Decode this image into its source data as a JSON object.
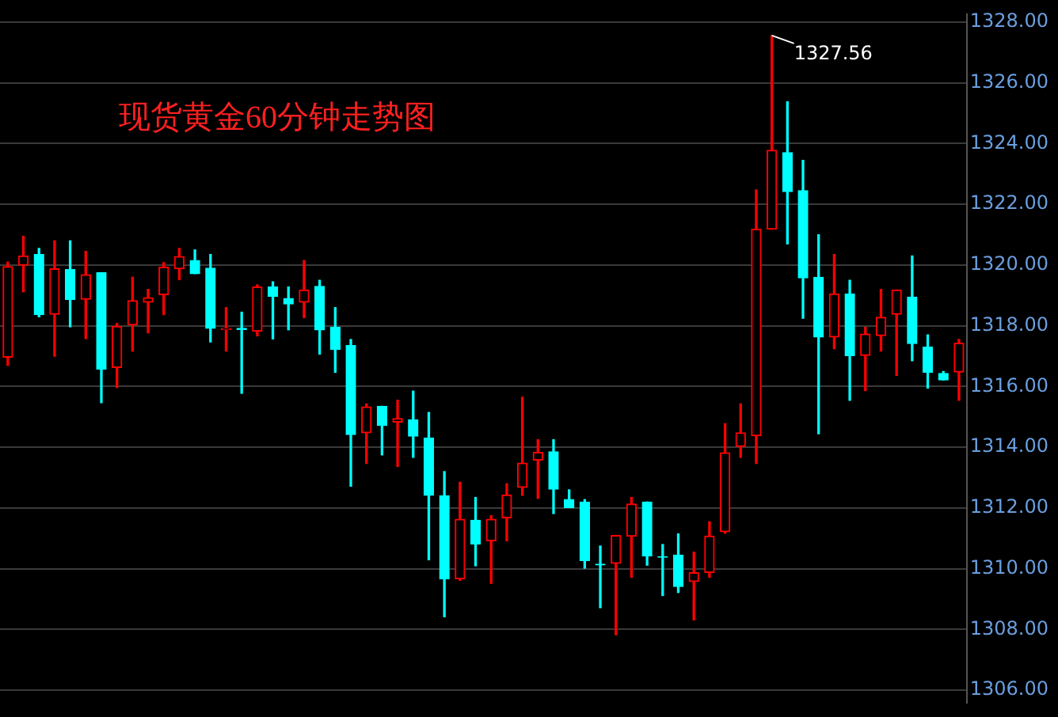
{
  "chart_data": {
    "type": "candlestick",
    "title": "现货黄金60分钟走势图",
    "categories": [
      null,
      null,
      null,
      null,
      null,
      null,
      null,
      null,
      null,
      null,
      null,
      null,
      null,
      null,
      null,
      null,
      null,
      null,
      null,
      null,
      null,
      null,
      null,
      null,
      null,
      null,
      null,
      null,
      null,
      null,
      null,
      null,
      null,
      null,
      null,
      null,
      null,
      null,
      null,
      null,
      null,
      null,
      null,
      null,
      null,
      null,
      null,
      null,
      null,
      null,
      null,
      null,
      null,
      null,
      null,
      null,
      null,
      null,
      null,
      null,
      null,
      null
    ],
    "ohlc": [
      [
        1316.97,
        1320.1,
        1316.7,
        1319.95
      ],
      [
        1320.0,
        1320.95,
        1319.12,
        1320.3
      ],
      [
        1320.35,
        1320.55,
        1318.3,
        1318.37
      ],
      [
        1318.38,
        1320.8,
        1317.0,
        1319.88
      ],
      [
        1319.85,
        1320.8,
        1317.97,
        1318.87
      ],
      [
        1318.88,
        1320.45,
        1317.58,
        1319.68
      ],
      [
        1319.75,
        1319.75,
        1315.47,
        1316.57
      ],
      [
        1316.63,
        1318.08,
        1315.97,
        1317.98
      ],
      [
        1318.03,
        1319.6,
        1317.17,
        1318.83
      ],
      [
        1318.78,
        1319.2,
        1317.77,
        1318.93
      ],
      [
        1319.03,
        1320.08,
        1318.37,
        1319.93
      ],
      [
        1319.88,
        1320.55,
        1319.52,
        1320.28
      ],
      [
        1320.15,
        1320.5,
        1319.72,
        1319.72
      ],
      [
        1319.9,
        1320.35,
        1317.47,
        1317.92
      ],
      [
        1317.88,
        1318.6,
        1317.17,
        1317.92
      ],
      [
        1317.92,
        1318.45,
        1315.78,
        1317.88
      ],
      [
        1317.83,
        1319.35,
        1317.67,
        1319.28
      ],
      [
        1319.28,
        1319.45,
        1317.57,
        1318.97
      ],
      [
        1318.9,
        1319.28,
        1317.87,
        1318.72
      ],
      [
        1318.78,
        1320.15,
        1318.27,
        1319.18
      ],
      [
        1319.3,
        1319.5,
        1317.07,
        1317.87
      ],
      [
        1317.95,
        1318.6,
        1316.47,
        1317.22
      ],
      [
        1317.35,
        1317.55,
        1312.72,
        1314.42
      ],
      [
        1314.48,
        1315.43,
        1313.47,
        1315.33
      ],
      [
        1315.35,
        1315.35,
        1313.75,
        1314.72
      ],
      [
        1314.83,
        1315.55,
        1313.37,
        1314.95
      ],
      [
        1314.9,
        1315.85,
        1313.67,
        1314.37
      ],
      [
        1314.3,
        1315.15,
        1310.3,
        1312.42
      ],
      [
        1312.4,
        1313.2,
        1308.42,
        1309.67
      ],
      [
        1309.67,
        1312.85,
        1309.62,
        1311.63
      ],
      [
        1311.6,
        1312.35,
        1310.1,
        1310.82
      ],
      [
        1310.92,
        1311.75,
        1309.52,
        1311.63
      ],
      [
        1311.68,
        1312.8,
        1310.92,
        1312.43
      ],
      [
        1312.68,
        1315.65,
        1312.42,
        1313.48
      ],
      [
        1313.58,
        1314.25,
        1312.32,
        1313.83
      ],
      [
        1313.85,
        1314.25,
        1311.82,
        1312.62
      ],
      [
        1312.28,
        1312.6,
        1312.02,
        1312.02
      ],
      [
        1312.2,
        1312.28,
        1310.02,
        1310.27
      ],
      [
        1310.15,
        1310.75,
        1308.72,
        1310.13
      ],
      [
        1310.18,
        1311.1,
        1307.83,
        1311.1
      ],
      [
        1311.07,
        1312.35,
        1309.72,
        1312.13
      ],
      [
        1312.2,
        1312.2,
        1310.12,
        1310.42
      ],
      [
        1310.4,
        1310.8,
        1309.12,
        1310.38
      ],
      [
        1310.45,
        1311.15,
        1309.22,
        1309.42
      ],
      [
        1309.58,
        1310.55,
        1308.32,
        1309.87
      ],
      [
        1309.88,
        1311.55,
        1309.72,
        1311.08
      ],
      [
        1311.22,
        1314.78,
        1311.17,
        1313.82
      ],
      [
        1314.03,
        1315.43,
        1313.67,
        1314.48
      ],
      [
        1314.38,
        1322.48,
        1313.47,
        1321.18
      ],
      [
        1321.18,
        1327.56,
        1321.18,
        1323.78
      ],
      [
        1323.7,
        1325.38,
        1320.7,
        1322.42
      ],
      [
        1322.45,
        1323.45,
        1318.25,
        1319.58
      ],
      [
        1319.6,
        1321.0,
        1314.45,
        1317.63
      ],
      [
        1317.63,
        1320.35,
        1317.25,
        1319.05
      ],
      [
        1319.05,
        1319.5,
        1315.55,
        1317.02
      ],
      [
        1317.03,
        1317.95,
        1315.87,
        1317.73
      ],
      [
        1317.68,
        1319.2,
        1317.17,
        1318.28
      ],
      [
        1318.38,
        1319.18,
        1316.37,
        1319.18
      ],
      [
        1318.95,
        1320.3,
        1316.85,
        1317.42
      ],
      [
        1317.3,
        1317.7,
        1315.95,
        1316.47
      ],
      [
        1316.43,
        1316.5,
        1316.22,
        1316.22
      ],
      [
        1316.48,
        1317.55,
        1315.55,
        1317.43
      ]
    ],
    "colors": [
      "#ff0000",
      "#ff0000",
      "#00ffff",
      "#ff0000",
      "#00ffff",
      "#ff0000",
      "#00ffff",
      "#ff0000",
      "#ff0000",
      "#ff0000",
      "#ff0000",
      "#ff0000",
      "#00ffff",
      "#00ffff",
      "#ff0000",
      "#00ffff",
      "#ff0000",
      "#00ffff",
      "#00ffff",
      "#ff0000",
      "#00ffff",
      "#00ffff",
      "#00ffff",
      "#ff0000",
      "#00ffff",
      "#ff0000",
      "#00ffff",
      "#00ffff",
      "#00ffff",
      "#ff0000",
      "#00ffff",
      "#ff0000",
      "#ff0000",
      "#ff0000",
      "#ff0000",
      "#00ffff",
      "#00ffff",
      "#00ffff",
      "#00ffff",
      "#ff0000",
      "#ff0000",
      "#00ffff",
      "#00ffff",
      "#00ffff",
      "#ff0000",
      "#ff0000",
      "#ff0000",
      "#ff0000",
      "#ff0000",
      "#ff0000",
      "#00ffff",
      "#00ffff",
      "#00ffff",
      "#ff0000",
      "#00ffff",
      "#ff0000",
      "#ff0000",
      "#ff0000",
      "#00ffff",
      "#00ffff",
      "#00ffff",
      "#ff0000"
    ],
    "ylim": [
      1305.6,
      1328.25
    ],
    "yticks": [
      {
        "value": 1306,
        "label": "1306.00"
      },
      {
        "value": 1308,
        "label": "1308.00"
      },
      {
        "value": 1310,
        "label": "1310.00"
      },
      {
        "value": 1312,
        "label": "1312.00"
      },
      {
        "value": 1314,
        "label": "1314.00"
      },
      {
        "value": 1316,
        "label": "1316.00"
      },
      {
        "value": 1318,
        "label": "1318.00"
      },
      {
        "value": 1320,
        "label": "1320.00"
      },
      {
        "value": 1322,
        "label": "1322.00"
      },
      {
        "value": 1324,
        "label": "1324.00"
      },
      {
        "value": 1326,
        "label": "1326.00"
      },
      {
        "value": 1328,
        "label": "1328.00"
      }
    ],
    "grid": "y",
    "annotations": [
      "1327.56"
    ]
  }
}
